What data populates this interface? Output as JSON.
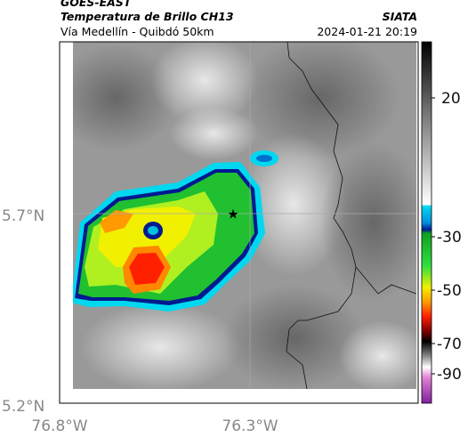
{
  "header": {
    "satellite": "GOES-EAST",
    "title": "Temperatura de Brillo CH13",
    "source": "SIATA",
    "subtitle": "Vía Medellín - Quibdó 50km",
    "datetime": "2024-01-21 20:19"
  },
  "map": {
    "lat_labels": [
      "5.7°N",
      "5.2°N"
    ],
    "lon_labels": [
      "76.8°W",
      "76.3°W"
    ]
  },
  "colorbar": {
    "labels": [
      "20",
      "-30",
      "-50",
      "-70",
      "-90"
    ]
  }
}
